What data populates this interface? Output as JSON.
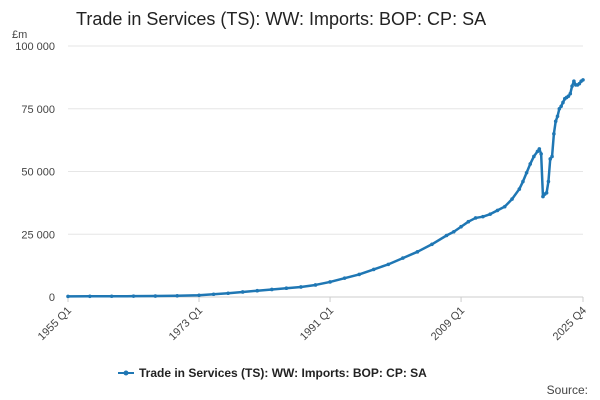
{
  "chart_data": {
    "type": "line",
    "title": "Trade in Services (TS): WW: Imports: BOP: CP: SA",
    "unit_label": "£m",
    "ylim": [
      0,
      100000
    ],
    "yticks": [
      0,
      25000,
      50000,
      75000,
      100000
    ],
    "ytick_labels": [
      "0",
      "25 000",
      "50 000",
      "75 000",
      "100 000"
    ],
    "xlim": [
      "1955 Q1",
      "2025 Q4"
    ],
    "xticks": [
      "1955 Q1",
      "1973 Q1",
      "1991 Q1",
      "2009 Q1",
      "2025 Q4"
    ],
    "grid": true,
    "legend_position": "bottom",
    "series": [
      {
        "name": "Trade in Services (TS): WW: Imports: BOP: CP: SA",
        "color": "#1f77b4",
        "points": [
          [
            "1955 Q1",
            250
          ],
          [
            "1958 Q1",
            280
          ],
          [
            "1961 Q1",
            300
          ],
          [
            "1964 Q1",
            330
          ],
          [
            "1967 Q1",
            380
          ],
          [
            "1970 Q1",
            480
          ],
          [
            "1973 Q1",
            700
          ],
          [
            "1975 Q1",
            1100
          ],
          [
            "1977 Q1",
            1500
          ],
          [
            "1979 Q1",
            2000
          ],
          [
            "1981 Q1",
            2500
          ],
          [
            "1983 Q1",
            3000
          ],
          [
            "1985 Q1",
            3500
          ],
          [
            "1987 Q1",
            4000
          ],
          [
            "1989 Q1",
            4800
          ],
          [
            "1991 Q1",
            6000
          ],
          [
            "1993 Q1",
            7500
          ],
          [
            "1995 Q1",
            9000
          ],
          [
            "1997 Q1",
            11000
          ],
          [
            "1999 Q1",
            13000
          ],
          [
            "2001 Q1",
            15500
          ],
          [
            "2003 Q1",
            18000
          ],
          [
            "2005 Q1",
            21000
          ],
          [
            "2007 Q1",
            24500
          ],
          [
            "2008 Q1",
            26000
          ],
          [
            "2009 Q1",
            28000
          ],
          [
            "2010 Q1",
            30000
          ],
          [
            "2011 Q1",
            31500
          ],
          [
            "2012 Q1",
            32000
          ],
          [
            "2013 Q1",
            33000
          ],
          [
            "2014 Q1",
            34500
          ],
          [
            "2015 Q1",
            36000
          ],
          [
            "2016 Q1",
            39000
          ],
          [
            "2017 Q1",
            43000
          ],
          [
            "2017 Q3",
            46000
          ],
          [
            "2018 Q1",
            49500
          ],
          [
            "2018 Q3",
            53000
          ],
          [
            "2019 Q1",
            56000
          ],
          [
            "2019 Q3",
            58000
          ],
          [
            "2019 Q4",
            59000
          ],
          [
            "2020 Q1",
            57000
          ],
          [
            "2020 Q2",
            40000
          ],
          [
            "2020 Q3",
            41000
          ],
          [
            "2020 Q4",
            41500
          ],
          [
            "2021 Q1",
            46000
          ],
          [
            "2021 Q2",
            55000
          ],
          [
            "2021 Q3",
            56000
          ],
          [
            "2021 Q4",
            65000
          ],
          [
            "2022 Q1",
            70000
          ],
          [
            "2022 Q2",
            72000
          ],
          [
            "2022 Q3",
            75000
          ],
          [
            "2022 Q4",
            76000
          ],
          [
            "2023 Q1",
            77500
          ],
          [
            "2023 Q2",
            79000
          ],
          [
            "2023 Q3",
            79500
          ],
          [
            "2023 Q4",
            80000
          ],
          [
            "2024 Q1",
            81000
          ],
          [
            "2024 Q2",
            84000
          ],
          [
            "2024 Q3",
            86000
          ],
          [
            "2024 Q4",
            84500
          ],
          [
            "2025 Q1",
            84500
          ],
          [
            "2025 Q2",
            85000
          ],
          [
            "2025 Q3",
            86000
          ],
          [
            "2025 Q4",
            86500
          ]
        ]
      }
    ],
    "source_label": "Source:"
  }
}
